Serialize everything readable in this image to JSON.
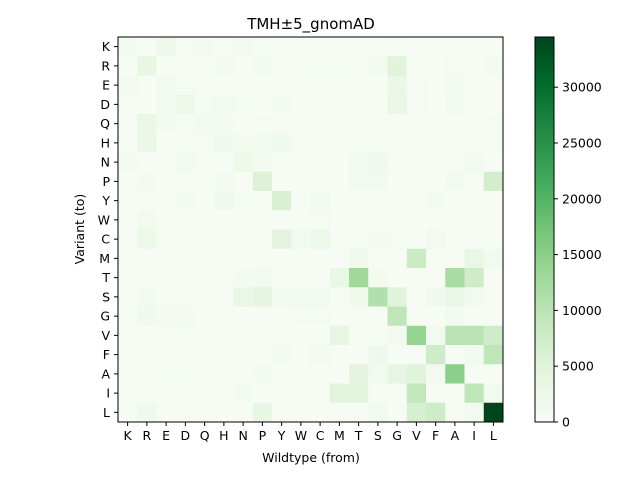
{
  "chart_data": {
    "type": "heatmap",
    "title": "TMH±5_gnomAD",
    "xlabel": "Wildtype (from)",
    "ylabel": "Variant (to)",
    "x_categories": [
      "K",
      "R",
      "E",
      "D",
      "Q",
      "H",
      "N",
      "P",
      "Y",
      "W",
      "C",
      "M",
      "T",
      "S",
      "G",
      "V",
      "F",
      "A",
      "I",
      "L"
    ],
    "y_categories": [
      "K",
      "R",
      "E",
      "D",
      "Q",
      "H",
      "N",
      "P",
      "Y",
      "W",
      "C",
      "M",
      "T",
      "S",
      "G",
      "V",
      "F",
      "A",
      "I",
      "L"
    ],
    "values": [
      [
        1000,
        600,
        2000,
        800,
        900,
        400,
        1200,
        600,
        300,
        200,
        300,
        300,
        300,
        200,
        500,
        300,
        200,
        300,
        300,
        300
      ],
      [
        300,
        3500,
        300,
        300,
        800,
        900,
        300,
        900,
        300,
        800,
        700,
        700,
        500,
        900,
        5000,
        300,
        300,
        500,
        300,
        1000
      ],
      [
        1000,
        200,
        1200,
        800,
        500,
        300,
        300,
        300,
        200,
        200,
        200,
        200,
        200,
        300,
        2800,
        500,
        300,
        1000,
        300,
        300
      ],
      [
        300,
        300,
        1500,
        2500,
        800,
        1200,
        800,
        300,
        900,
        300,
        300,
        200,
        300,
        300,
        3000,
        500,
        300,
        1200,
        300,
        300
      ],
      [
        300,
        3000,
        900,
        800,
        1500,
        900,
        300,
        800,
        300,
        200,
        300,
        200,
        300,
        300,
        600,
        300,
        300,
        300,
        300,
        600
      ],
      [
        300,
        3000,
        300,
        400,
        800,
        1900,
        900,
        900,
        1700,
        300,
        300,
        300,
        300,
        300,
        300,
        300,
        300,
        300,
        300,
        600
      ],
      [
        1000,
        300,
        300,
        1500,
        500,
        300,
        2500,
        900,
        300,
        300,
        300,
        300,
        1500,
        1700,
        300,
        300,
        300,
        300,
        1200,
        300
      ],
      [
        300,
        900,
        300,
        300,
        800,
        900,
        300,
        5500,
        300,
        300,
        300,
        300,
        1500,
        1500,
        300,
        300,
        300,
        1200,
        300,
        7000
      ],
      [
        300,
        300,
        300,
        900,
        300,
        1600,
        800,
        300,
        6000,
        300,
        1500,
        300,
        300,
        300,
        300,
        300,
        1000,
        300,
        300,
        300
      ],
      [
        300,
        1200,
        300,
        300,
        300,
        300,
        300,
        300,
        300,
        300,
        800,
        300,
        300,
        300,
        300,
        300,
        300,
        300,
        300,
        300
      ],
      [
        300,
        2700,
        300,
        300,
        300,
        300,
        300,
        300,
        4500,
        1300,
        2600,
        300,
        300,
        900,
        600,
        300,
        1200,
        300,
        300,
        300
      ],
      [
        300,
        300,
        300,
        300,
        300,
        300,
        300,
        300,
        300,
        300,
        300,
        300,
        1900,
        300,
        300,
        8000,
        300,
        300,
        3200,
        1500
      ],
      [
        300,
        500,
        300,
        300,
        300,
        300,
        900,
        1500,
        300,
        300,
        300,
        3300,
        13000,
        900,
        300,
        300,
        300,
        12000,
        7500,
        300
      ],
      [
        300,
        900,
        300,
        300,
        300,
        300,
        3000,
        4200,
        1500,
        1400,
        1500,
        300,
        1800,
        11000,
        5000,
        300,
        1600,
        3000,
        1200,
        300
      ],
      [
        300,
        1700,
        1000,
        1000,
        300,
        300,
        300,
        300,
        300,
        800,
        600,
        300,
        300,
        300,
        9500,
        300,
        300,
        1500,
        300,
        300
      ],
      [
        300,
        300,
        300,
        800,
        300,
        300,
        300,
        300,
        300,
        300,
        300,
        4000,
        300,
        300,
        1200,
        14000,
        1200,
        10000,
        10000,
        7500
      ],
      [
        300,
        300,
        300,
        300,
        300,
        300,
        300,
        300,
        900,
        300,
        900,
        300,
        300,
        2000,
        300,
        300,
        7500,
        300,
        1400,
        9500
      ],
      [
        300,
        300,
        800,
        800,
        300,
        300,
        300,
        900,
        300,
        300,
        300,
        300,
        4500,
        1200,
        4000,
        5000,
        1200,
        15000,
        300,
        300
      ],
      [
        300,
        300,
        300,
        300,
        300,
        300,
        900,
        300,
        300,
        300,
        300,
        4800,
        4800,
        300,
        300,
        9000,
        300,
        300,
        9500,
        1200
      ],
      [
        300,
        1600,
        300,
        300,
        300,
        300,
        300,
        3500,
        300,
        300,
        300,
        300,
        300,
        1500,
        300,
        6500,
        7500,
        300,
        1200,
        34500
      ]
    ],
    "colorbar": {
      "min": 0,
      "max": 34500,
      "ticks": [
        0,
        5000,
        10000,
        15000,
        20000,
        25000,
        30000
      ],
      "colormap": "Greens"
    }
  }
}
